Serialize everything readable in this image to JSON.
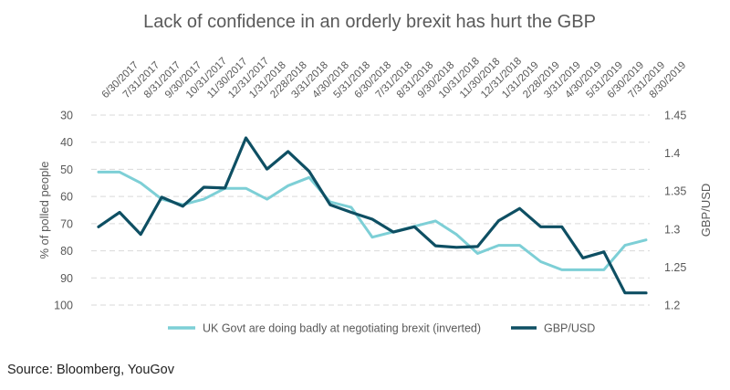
{
  "chart_data": {
    "type": "line",
    "title": "Lack of confidence in an orderly brexit has hurt the GBP",
    "x": [
      "6/30/2017",
      "7/31/2017",
      "8/31/2017",
      "9/30/2017",
      "10/31/2017",
      "11/30/2017",
      "12/31/2017",
      "1/31/2018",
      "2/28/2018",
      "3/31/2018",
      "4/30/2018",
      "5/31/2018",
      "6/30/2018",
      "7/31/2018",
      "8/31/2018",
      "9/30/2018",
      "10/31/2018",
      "11/30/2018",
      "12/31/2018",
      "1/31/2019",
      "2/28/2019",
      "3/31/2019",
      "4/30/2019",
      "5/31/2019",
      "6/30/2019",
      "7/31/2019",
      "8/30/2019"
    ],
    "y_left": {
      "label": "% of  polled people",
      "lim": [
        100,
        30
      ],
      "ticks": [
        30,
        40,
        50,
        60,
        70,
        80,
        90,
        100
      ],
      "inverted": true
    },
    "y_right": {
      "label": "GBP/USD",
      "lim": [
        1.2,
        1.45
      ],
      "ticks": [
        "1.2",
        "1.25",
        "1.3",
        "1.35",
        "1.4",
        "1.45"
      ]
    },
    "grid": true,
    "legend_position": "bottom",
    "series": [
      {
        "name": "UK Govt are doing badly at negotiating brexit (inverted)",
        "axis": "left",
        "color": "#7dcfd6",
        "values": [
          51,
          51,
          55,
          61,
          63,
          61,
          57,
          57,
          61,
          56,
          53,
          62,
          64,
          75,
          73,
          71,
          69,
          74,
          81,
          78,
          78,
          84,
          87,
          87,
          87,
          78,
          76
        ]
      },
      {
        "name": "GBP/USD",
        "axis": "right",
        "color": "#0e4f63",
        "values": [
          1.303,
          1.322,
          1.293,
          1.342,
          1.33,
          1.355,
          1.354,
          1.42,
          1.379,
          1.402,
          1.376,
          1.332,
          1.322,
          1.313,
          1.296,
          1.303,
          1.278,
          1.276,
          1.277,
          1.311,
          1.327,
          1.303,
          1.303,
          1.262,
          1.27,
          1.216,
          1.216
        ]
      }
    ]
  },
  "source": "Source: Bloomberg, YouGov"
}
